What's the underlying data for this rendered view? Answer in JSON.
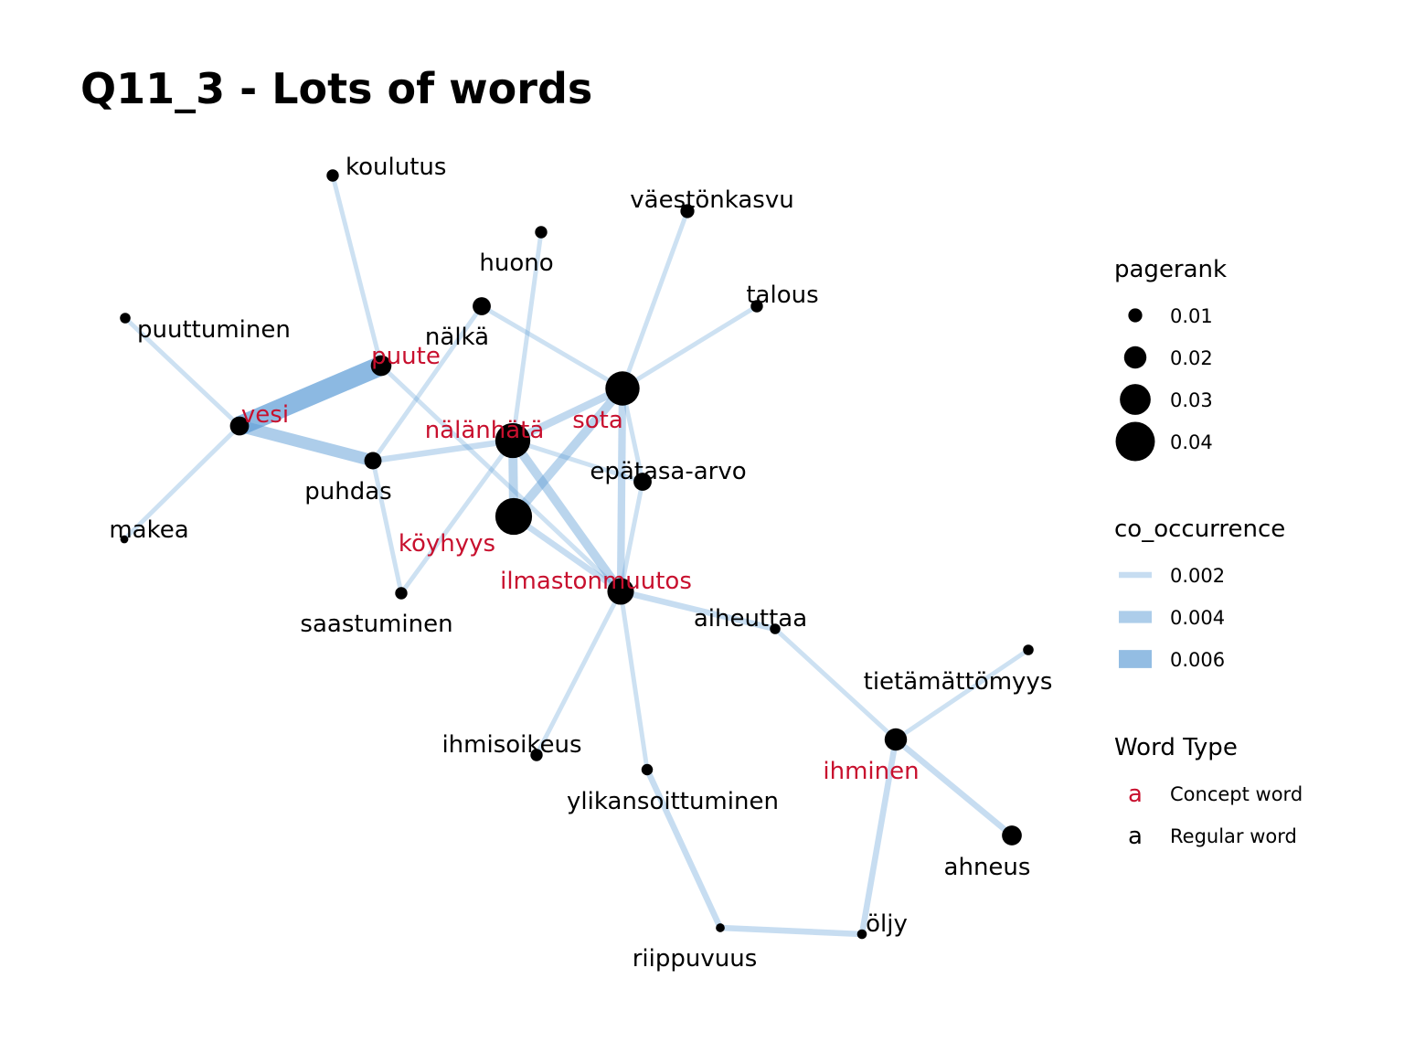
{
  "title": "Q11_3 - Lots of words",
  "colors": {
    "concept": "#C8102E",
    "regular": "#000000",
    "node": "#000000",
    "edge": "#5B9BD5"
  },
  "nodes": [
    {
      "id": "koulutus",
      "label": "koulutus",
      "type": "regular",
      "pagerank": 0.008
    },
    {
      "id": "vaestonkasvu",
      "label": "väestönkasvu",
      "type": "regular",
      "pagerank": 0.01
    },
    {
      "id": "huono",
      "label": "huono",
      "type": "regular",
      "pagerank": 0.008
    },
    {
      "id": "talous",
      "label": "talous",
      "type": "regular",
      "pagerank": 0.008
    },
    {
      "id": "puuttuminen",
      "label": "puuttuminen",
      "type": "regular",
      "pagerank": 0.006
    },
    {
      "id": "nalka",
      "label": "nälkä",
      "type": "regular",
      "pagerank": 0.015
    },
    {
      "id": "puute",
      "label": "puute",
      "type": "concept",
      "pagerank": 0.018
    },
    {
      "id": "vesi",
      "label": "vesi",
      "type": "concept",
      "pagerank": 0.016
    },
    {
      "id": "nalanhata",
      "label": "nälänhätä",
      "type": "concept",
      "pagerank": 0.035
    },
    {
      "id": "sota",
      "label": "sota",
      "type": "concept",
      "pagerank": 0.034
    },
    {
      "id": "epatasa",
      "label": "epätasa-arvo",
      "type": "regular",
      "pagerank": 0.015
    },
    {
      "id": "puhdas",
      "label": "puhdas",
      "type": "regular",
      "pagerank": 0.014
    },
    {
      "id": "makea",
      "label": "makea",
      "type": "regular",
      "pagerank": 0.003
    },
    {
      "id": "koyhyys",
      "label": "köyhyys",
      "type": "concept",
      "pagerank": 0.037
    },
    {
      "id": "ilmastonmuutos",
      "label": "ilmastonmuutos",
      "type": "concept",
      "pagerank": 0.025
    },
    {
      "id": "saastuminen",
      "label": "saastuminen",
      "type": "regular",
      "pagerank": 0.008
    },
    {
      "id": "aiheuttaa",
      "label": "aiheuttaa",
      "type": "regular",
      "pagerank": 0.006
    },
    {
      "id": "tietamattomyys",
      "label": "tietämättömyys",
      "type": "regular",
      "pagerank": 0.006
    },
    {
      "id": "ihminen",
      "label": "ihminen",
      "type": "concept",
      "pagerank": 0.02
    },
    {
      "id": "ihmisoikeus",
      "label": "ihmisoikeus",
      "type": "regular",
      "pagerank": 0.008
    },
    {
      "id": "ylikansoittuminen",
      "label": "ylikansoittuminen",
      "type": "regular",
      "pagerank": 0.007
    },
    {
      "id": "ahneus",
      "label": "ahneus",
      "type": "regular",
      "pagerank": 0.017
    },
    {
      "id": "oljy",
      "label": "öljy",
      "type": "regular",
      "pagerank": 0.005
    },
    {
      "id": "riippuvuus",
      "label": "riippuvuus",
      "type": "regular",
      "pagerank": 0.004
    }
  ],
  "edges": [
    {
      "source": "vesi",
      "target": "puute",
      "co_occurrence": 0.0065
    },
    {
      "source": "vesi",
      "target": "puhdas",
      "co_occurrence": 0.004
    },
    {
      "source": "vesi",
      "target": "puuttuminen",
      "co_occurrence": 0.0015
    },
    {
      "source": "vesi",
      "target": "makea",
      "co_occurrence": 0.0015
    },
    {
      "source": "puute",
      "target": "koulutus",
      "co_occurrence": 0.0015
    },
    {
      "source": "puute",
      "target": "ilmastonmuutos",
      "co_occurrence": 0.0015
    },
    {
      "source": "puhdas",
      "target": "nalka",
      "co_occurrence": 0.0015
    },
    {
      "source": "puhdas",
      "target": "nalanhata",
      "co_occurrence": 0.002
    },
    {
      "source": "puhdas",
      "target": "saastuminen",
      "co_occurrence": 0.0015
    },
    {
      "source": "nalka",
      "target": "sota",
      "co_occurrence": 0.0015
    },
    {
      "source": "huono",
      "target": "nalanhata",
      "co_occurrence": 0.0015
    },
    {
      "source": "vaestonkasvu",
      "target": "sota",
      "co_occurrence": 0.0015
    },
    {
      "source": "talous",
      "target": "sota",
      "co_occurrence": 0.0015
    },
    {
      "source": "sota",
      "target": "nalanhata",
      "co_occurrence": 0.0025
    },
    {
      "source": "sota",
      "target": "koyhyys",
      "co_occurrence": 0.003
    },
    {
      "source": "sota",
      "target": "ilmastonmuutos",
      "co_occurrence": 0.0025
    },
    {
      "source": "sota",
      "target": "epatasa",
      "co_occurrence": 0.0015
    },
    {
      "source": "nalanhata",
      "target": "koyhyys",
      "co_occurrence": 0.003
    },
    {
      "source": "nalanhata",
      "target": "ilmastonmuutos",
      "co_occurrence": 0.003
    },
    {
      "source": "nalanhata",
      "target": "epatasa",
      "co_occurrence": 0.0015
    },
    {
      "source": "nalanhata",
      "target": "saastuminen",
      "co_occurrence": 0.0015
    },
    {
      "source": "koyhyys",
      "target": "ilmastonmuutos",
      "co_occurrence": 0.002
    },
    {
      "source": "epatasa",
      "target": "ilmastonmuutos",
      "co_occurrence": 0.0015
    },
    {
      "source": "ilmastonmuutos",
      "target": "aiheuttaa",
      "co_occurrence": 0.002
    },
    {
      "source": "ilmastonmuutos",
      "target": "ihmisoikeus",
      "co_occurrence": 0.0015
    },
    {
      "source": "ilmastonmuutos",
      "target": "ylikansoittuminen",
      "co_occurrence": 0.0015
    },
    {
      "source": "aiheuttaa",
      "target": "ihminen",
      "co_occurrence": 0.0015
    },
    {
      "source": "ihminen",
      "target": "tietamattomyys",
      "co_occurrence": 0.0015
    },
    {
      "source": "ihminen",
      "target": "ahneus",
      "co_occurrence": 0.002
    },
    {
      "source": "ihminen",
      "target": "oljy",
      "co_occurrence": 0.002
    },
    {
      "source": "oljy",
      "target": "riippuvuus",
      "co_occurrence": 0.002
    },
    {
      "source": "riippuvuus",
      "target": "ylikansoittuminen",
      "co_occurrence": 0.002
    }
  ],
  "legend": {
    "pagerank": {
      "title": "pagerank",
      "items": [
        {
          "label": "0.01",
          "value": 0.01
        },
        {
          "label": "0.02",
          "value": 0.02
        },
        {
          "label": "0.03",
          "value": 0.03
        },
        {
          "label": "0.04",
          "value": 0.04
        }
      ]
    },
    "co_occurrence": {
      "title": "co_occurrence",
      "items": [
        {
          "label": "0.002",
          "value": 0.002
        },
        {
          "label": "0.004",
          "value": 0.004
        },
        {
          "label": "0.006",
          "value": 0.006
        }
      ]
    },
    "word_type": {
      "title": "Word Type",
      "items": [
        {
          "glyph": "a",
          "label": "Concept word",
          "type": "concept"
        },
        {
          "glyph": "a",
          "label": "Regular word",
          "type": "regular"
        }
      ]
    }
  }
}
